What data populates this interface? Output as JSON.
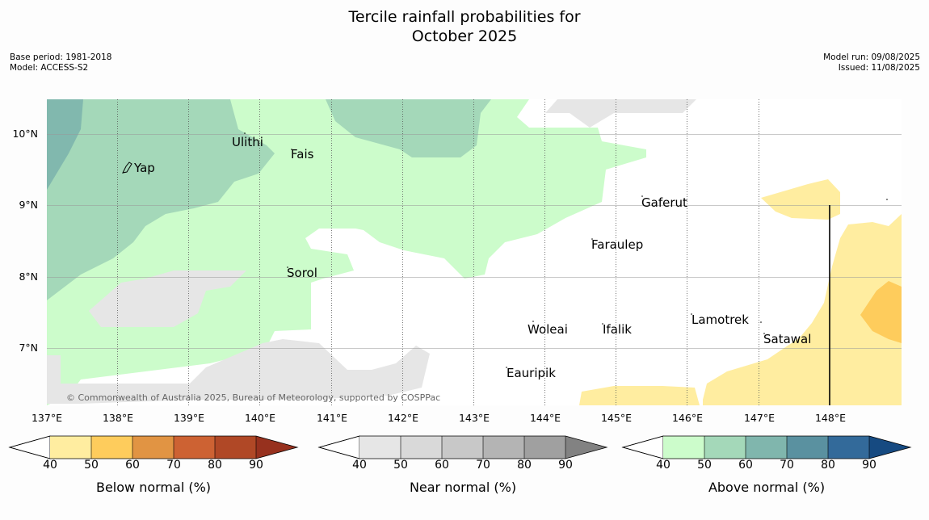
{
  "title_line1": "Tercile rainfall probabilities for",
  "title_line2": "October 2025",
  "meta_left": [
    "Base period: 1981-2018",
    "Model: ACCESS-S2"
  ],
  "meta_right": [
    "Model run: 09/08/2025",
    "Issued: 11/08/2025"
  ],
  "copyright": "© Commonwealth of Australia 2025, Bureau of Meteorology, supported by COSPPac",
  "map": {
    "lon_labels": [
      "137°E",
      "138°E",
      "139°E",
      "140°E",
      "141°E",
      "142°E",
      "143°E",
      "144°E",
      "145°E",
      "146°E",
      "147°E",
      "148°E"
    ],
    "lat_labels": [
      "10°N",
      "9°N",
      "8°N",
      "7°N"
    ],
    "places": [
      "Ulithi",
      "Fais",
      "Yap",
      "Gaferut",
      "Faraulep",
      "Sorol",
      "Lamotrek",
      "Woleai",
      "Ifalik",
      "Satawal",
      "Eauripik"
    ]
  },
  "colorbars": [
    {
      "label": "Below normal (%)",
      "ticks": [
        "40",
        "50",
        "60",
        "70",
        "80",
        "90"
      ],
      "colors": [
        "#ffeda0",
        "#fecc5c",
        "#e19443",
        "#cd6233",
        "#b04826",
        "#97311e"
      ]
    },
    {
      "label": "Near normal (%)",
      "ticks": [
        "40",
        "50",
        "60",
        "70",
        "80",
        "90"
      ],
      "colors": [
        "#e6e6e6",
        "#d9d9d9",
        "#c8c8c8",
        "#b4b4b4",
        "#a0a0a0",
        "#828282"
      ]
    },
    {
      "label": "Above normal (%)",
      "ticks": [
        "40",
        "50",
        "60",
        "70",
        "80",
        "90"
      ],
      "colors": [
        "#ccfccb",
        "#a4d8b9",
        "#80b6ad",
        "#5a91a0",
        "#336a9a",
        "#164a81"
      ]
    }
  ]
}
